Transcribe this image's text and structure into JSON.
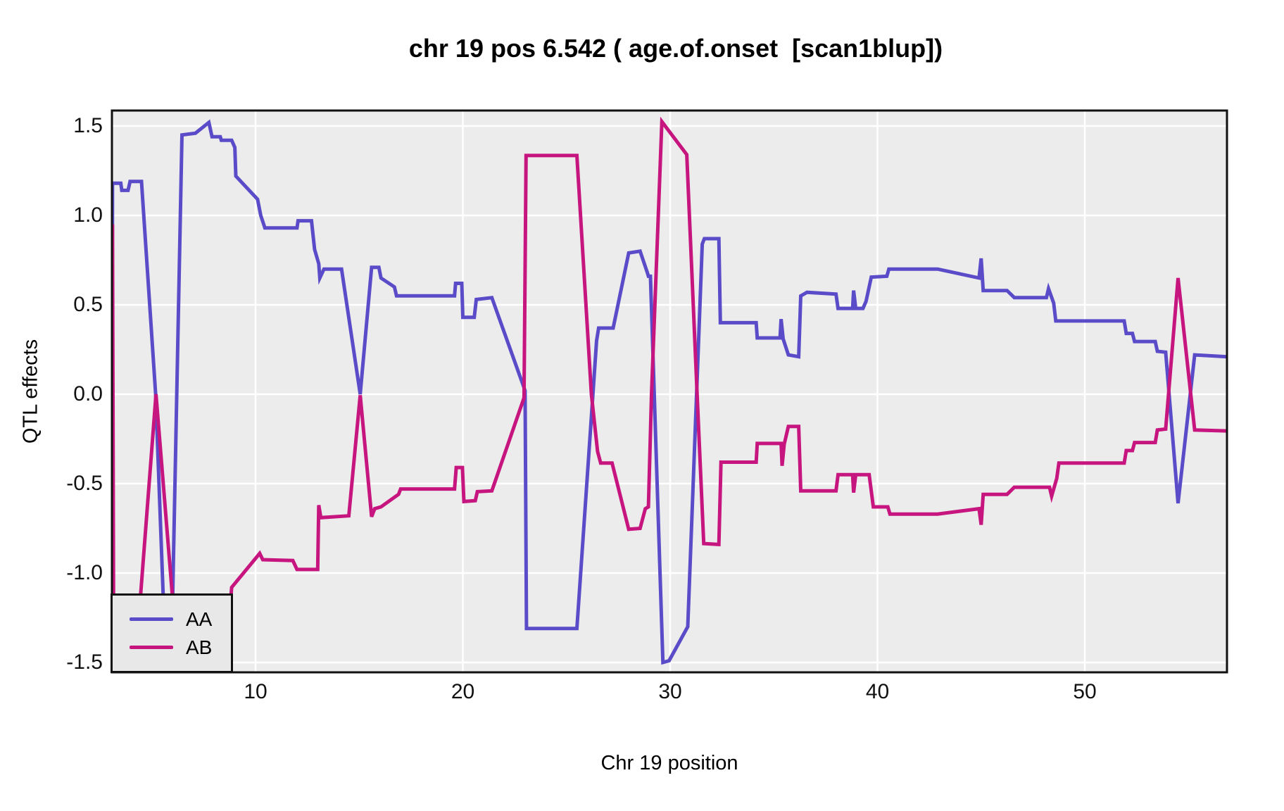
{
  "title": "chr 19 pos 6.542 ( age.of.onset  [scan1blup])",
  "x_axis": {
    "label": "Chr 19 position",
    "tick_labels": [
      "10",
      "20",
      "30",
      "40",
      "50"
    ],
    "tick_values": [
      10,
      20,
      30,
      40,
      50
    ]
  },
  "y_axis": {
    "label": "QTL effects",
    "tick_labels": [
      "1.5",
      "1.0",
      "0.5",
      "0.0",
      "-0.5",
      "-1.0",
      "-1.5"
    ],
    "tick_values": [
      1.5,
      1.0,
      0.5,
      0.0,
      -0.5,
      -1.0,
      -1.5
    ]
  },
  "legend": {
    "entries": [
      {
        "label": "AA",
        "color": "#5A4BC8"
      },
      {
        "label": "AB",
        "color": "#C7157F"
      }
    ]
  },
  "colors": {
    "panel_background": "#EDECEC",
    "gridline": "#FFFFFF",
    "panel_border": "#111111",
    "series_AA": "#5A4BC8",
    "series_AB": "#C7157F"
  },
  "chart_data": {
    "type": "line",
    "title": "chr 19 pos 6.542 ( age.of.onset  [scan1blup])",
    "xlabel": "Chr 19 position",
    "ylabel": "QTL effects",
    "xlim": [
      3.07,
      56.86
    ],
    "ylim": [
      -1.56,
      1.59
    ],
    "grid": "white major gridlines on gray panel",
    "legend_position": "bottom-left inside panel",
    "series": [
      {
        "name": "AA",
        "color": "#5A4BC8",
        "points": [
          [
            3.08,
            -1.05
          ],
          [
            3.1,
            1.18
          ],
          [
            3.5,
            1.18
          ],
          [
            3.55,
            1.14
          ],
          [
            3.85,
            1.14
          ],
          [
            3.95,
            1.19
          ],
          [
            4.5,
            1.19
          ],
          [
            5.18,
            0.0
          ],
          [
            5.65,
            -1.45
          ],
          [
            5.95,
            -1.45
          ],
          [
            6.45,
            1.45
          ],
          [
            7.1,
            1.46
          ],
          [
            7.75,
            1.52
          ],
          [
            7.9,
            1.44
          ],
          [
            8.3,
            1.44
          ],
          [
            8.35,
            1.42
          ],
          [
            8.85,
            1.42
          ],
          [
            9.0,
            1.38
          ],
          [
            9.05,
            1.22
          ],
          [
            10.1,
            1.09
          ],
          [
            10.25,
            1.0
          ],
          [
            10.45,
            0.93
          ],
          [
            12.0,
            0.93
          ],
          [
            12.05,
            0.97
          ],
          [
            12.7,
            0.97
          ],
          [
            12.85,
            0.81
          ],
          [
            13.05,
            0.73
          ],
          [
            13.1,
            0.65
          ],
          [
            13.3,
            0.7
          ],
          [
            14.15,
            0.7
          ],
          [
            15.05,
            0.0
          ],
          [
            15.6,
            0.71
          ],
          [
            15.95,
            0.71
          ],
          [
            16.05,
            0.65
          ],
          [
            16.7,
            0.6
          ],
          [
            16.8,
            0.55
          ],
          [
            19.6,
            0.55
          ],
          [
            19.65,
            0.62
          ],
          [
            19.95,
            0.62
          ],
          [
            20.0,
            0.43
          ],
          [
            20.55,
            0.43
          ],
          [
            20.65,
            0.53
          ],
          [
            21.4,
            0.54
          ],
          [
            23.0,
            0.02
          ],
          [
            23.07,
            -1.31
          ],
          [
            25.5,
            -1.31
          ],
          [
            26.45,
            0.3
          ],
          [
            26.55,
            0.37
          ],
          [
            27.25,
            0.37
          ],
          [
            28.0,
            0.79
          ],
          [
            28.55,
            0.8
          ],
          [
            28.9,
            0.68
          ],
          [
            28.95,
            0.66
          ],
          [
            29.05,
            0.66
          ],
          [
            29.65,
            -1.5
          ],
          [
            29.95,
            -1.49
          ],
          [
            30.85,
            -1.3
          ],
          [
            31.55,
            0.84
          ],
          [
            31.65,
            0.87
          ],
          [
            32.35,
            0.87
          ],
          [
            32.42,
            0.4
          ],
          [
            34.15,
            0.4
          ],
          [
            34.2,
            0.315
          ],
          [
            35.3,
            0.315
          ],
          [
            35.35,
            0.42
          ],
          [
            35.45,
            0.31
          ],
          [
            35.7,
            0.22
          ],
          [
            36.2,
            0.21
          ],
          [
            36.3,
            0.55
          ],
          [
            36.6,
            0.57
          ],
          [
            38.0,
            0.56
          ],
          [
            38.1,
            0.48
          ],
          [
            38.8,
            0.48
          ],
          [
            38.85,
            0.58
          ],
          [
            38.95,
            0.48
          ],
          [
            39.3,
            0.48
          ],
          [
            39.45,
            0.52
          ],
          [
            39.7,
            0.655
          ],
          [
            40.45,
            0.66
          ],
          [
            40.55,
            0.7
          ],
          [
            42.9,
            0.7
          ],
          [
            44.9,
            0.65
          ],
          [
            45.0,
            0.76
          ],
          [
            45.1,
            0.58
          ],
          [
            46.25,
            0.58
          ],
          [
            46.6,
            0.54
          ],
          [
            47.9,
            0.54
          ],
          [
            48.15,
            0.54
          ],
          [
            48.25,
            0.59
          ],
          [
            48.5,
            0.51
          ],
          [
            48.6,
            0.41
          ],
          [
            51.9,
            0.41
          ],
          [
            52.0,
            0.34
          ],
          [
            52.3,
            0.34
          ],
          [
            52.4,
            0.295
          ],
          [
            53.4,
            0.295
          ],
          [
            53.5,
            0.24
          ],
          [
            53.9,
            0.235
          ],
          [
            54.5,
            -0.61
          ],
          [
            55.3,
            0.22
          ],
          [
            56.86,
            0.21
          ]
        ]
      },
      {
        "name": "AB",
        "color": "#C7157F",
        "points": [
          [
            3.1,
            0.95
          ],
          [
            3.15,
            -1.13
          ],
          [
            4.45,
            -1.13
          ],
          [
            5.2,
            0.0
          ],
          [
            6.2,
            -1.43
          ],
          [
            6.5,
            -1.45
          ],
          [
            7.1,
            -1.46
          ],
          [
            7.75,
            -1.52
          ],
          [
            7.9,
            -1.44
          ],
          [
            8.6,
            -1.43
          ],
          [
            8.85,
            -1.08
          ],
          [
            10.2,
            -0.89
          ],
          [
            10.35,
            -0.925
          ],
          [
            11.8,
            -0.93
          ],
          [
            12.0,
            -0.98
          ],
          [
            13.0,
            -0.98
          ],
          [
            13.05,
            -0.62
          ],
          [
            13.15,
            -0.69
          ],
          [
            14.5,
            -0.68
          ],
          [
            15.05,
            -0.005
          ],
          [
            15.6,
            -0.685
          ],
          [
            15.75,
            -0.64
          ],
          [
            16.05,
            -0.63
          ],
          [
            16.9,
            -0.56
          ],
          [
            17.0,
            -0.53
          ],
          [
            19.6,
            -0.53
          ],
          [
            19.68,
            -0.41
          ],
          [
            19.98,
            -0.41
          ],
          [
            20.05,
            -0.6
          ],
          [
            20.6,
            -0.595
          ],
          [
            20.7,
            -0.545
          ],
          [
            21.4,
            -0.54
          ],
          [
            22.95,
            -0.02
          ],
          [
            23.05,
            1.335
          ],
          [
            25.5,
            1.335
          ],
          [
            26.2,
            0.0
          ],
          [
            26.5,
            -0.32
          ],
          [
            26.65,
            -0.385
          ],
          [
            27.2,
            -0.385
          ],
          [
            28.0,
            -0.755
          ],
          [
            28.55,
            -0.75
          ],
          [
            28.8,
            -0.64
          ],
          [
            28.95,
            -0.63
          ],
          [
            29.1,
            0.0
          ],
          [
            29.6,
            1.525
          ],
          [
            30.8,
            1.34
          ],
          [
            31.3,
            0.0
          ],
          [
            31.62,
            -0.835
          ],
          [
            32.35,
            -0.84
          ],
          [
            32.45,
            -0.38
          ],
          [
            34.15,
            -0.38
          ],
          [
            34.2,
            -0.275
          ],
          [
            35.35,
            -0.275
          ],
          [
            35.4,
            -0.4
          ],
          [
            35.5,
            -0.28
          ],
          [
            35.7,
            -0.18
          ],
          [
            36.2,
            -0.18
          ],
          [
            36.3,
            -0.54
          ],
          [
            38.0,
            -0.54
          ],
          [
            38.1,
            -0.45
          ],
          [
            38.8,
            -0.45
          ],
          [
            38.85,
            -0.55
          ],
          [
            38.95,
            -0.45
          ],
          [
            39.6,
            -0.45
          ],
          [
            39.8,
            -0.63
          ],
          [
            40.5,
            -0.63
          ],
          [
            40.6,
            -0.67
          ],
          [
            42.9,
            -0.67
          ],
          [
            44.9,
            -0.64
          ],
          [
            45.0,
            -0.73
          ],
          [
            45.1,
            -0.56
          ],
          [
            46.25,
            -0.56
          ],
          [
            46.6,
            -0.52
          ],
          [
            47.9,
            -0.52
          ],
          [
            48.3,
            -0.52
          ],
          [
            48.4,
            -0.57
          ],
          [
            48.65,
            -0.47
          ],
          [
            48.75,
            -0.385
          ],
          [
            51.9,
            -0.385
          ],
          [
            52.0,
            -0.315
          ],
          [
            52.3,
            -0.315
          ],
          [
            52.4,
            -0.27
          ],
          [
            53.4,
            -0.27
          ],
          [
            53.5,
            -0.2
          ],
          [
            53.9,
            -0.195
          ],
          [
            54.5,
            0.65
          ],
          [
            55.3,
            -0.2
          ],
          [
            56.86,
            -0.205
          ]
        ]
      }
    ]
  }
}
